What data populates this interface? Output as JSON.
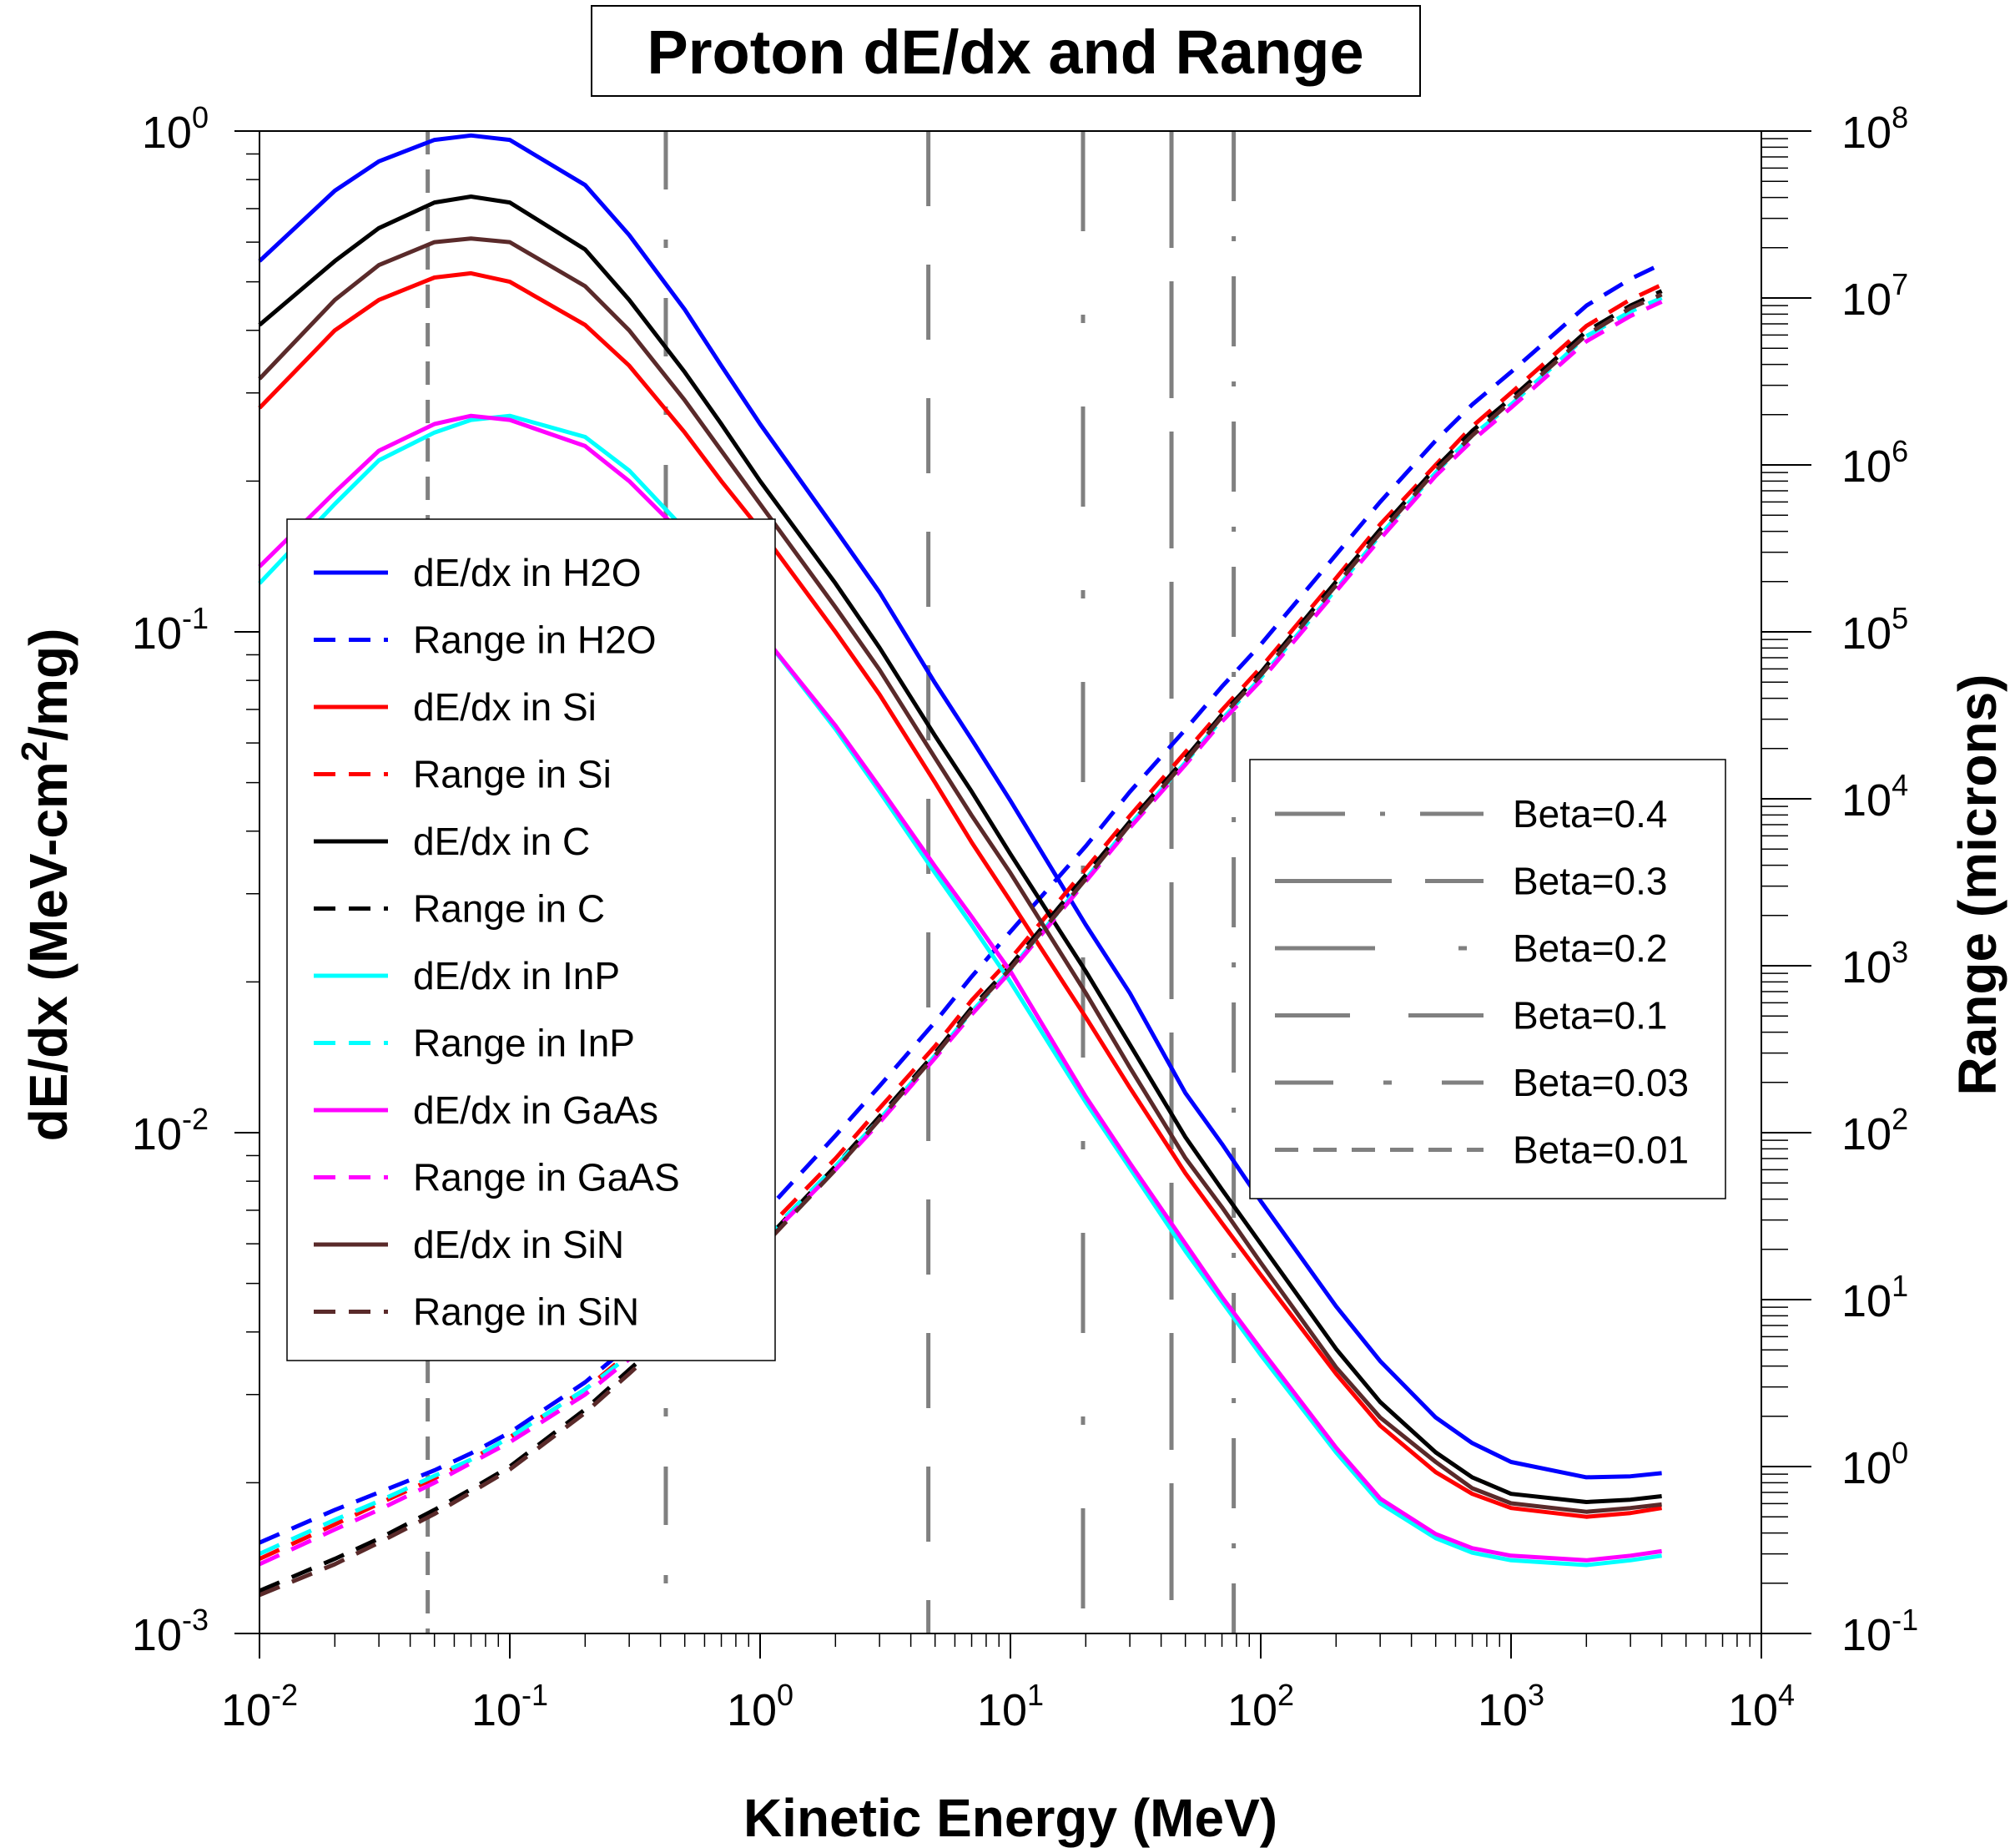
{
  "chart_data": {
    "type": "line",
    "title": "Proton dE/dx and Range",
    "xlabel": "Kinetic Energy (MeV)",
    "ylabel_left": "dE/dx (MeV-cm2/mg)",
    "ylabel_left_parts": [
      "dE/dx (MeV-cm",
      "2",
      "/mg)"
    ],
    "ylabel_right": "Range (microns)",
    "x_scale": "log",
    "xlim": [
      0.01,
      10000
    ],
    "ylim_left": [
      0.001,
      1
    ],
    "ylim_right": [
      0.1,
      100000000
    ],
    "x_ticks": [
      {
        "base": "10",
        "exp": "-2"
      },
      {
        "base": "10",
        "exp": "-1"
      },
      {
        "base": "10",
        "exp": "0"
      },
      {
        "base": "10",
        "exp": "1"
      },
      {
        "base": "10",
        "exp": "2"
      },
      {
        "base": "10",
        "exp": "3"
      },
      {
        "base": "10",
        "exp": "4"
      }
    ],
    "y_left_ticks": [
      {
        "base": "10",
        "exp": "-3"
      },
      {
        "base": "10",
        "exp": "-2"
      },
      {
        "base": "10",
        "exp": "-1"
      },
      {
        "base": "10",
        "exp": "0"
      }
    ],
    "y_right_ticks": [
      {
        "base": "10",
        "exp": "-1"
      },
      {
        "base": "10",
        "exp": "0"
      },
      {
        "base": "10",
        "exp": "1"
      },
      {
        "base": "10",
        "exp": "2"
      },
      {
        "base": "10",
        "exp": "3"
      },
      {
        "base": "10",
        "exp": "4"
      },
      {
        "base": "10",
        "exp": "5"
      },
      {
        "base": "10",
        "exp": "6"
      },
      {
        "base": "10",
        "exp": "7"
      },
      {
        "base": "10",
        "exp": "8"
      }
    ],
    "energies": [
      0.01,
      0.02,
      0.03,
      0.05,
      0.07,
      0.1,
      0.2,
      0.3,
      0.5,
      0.7,
      1,
      2,
      3,
      5,
      7,
      10,
      20,
      30,
      50,
      70,
      100,
      200,
      300,
      500,
      700,
      1000,
      2000,
      3000,
      4000
    ],
    "series": [
      {
        "name": "dE/dx in H2O",
        "axis": "left",
        "style": "solid",
        "color": "#0000ff",
        "values": [
          0.55,
          0.76,
          0.87,
          0.96,
          0.98,
          0.96,
          0.78,
          0.62,
          0.44,
          0.34,
          0.26,
          0.16,
          0.12,
          0.079,
          0.061,
          0.046,
          0.026,
          0.019,
          0.012,
          0.0095,
          0.0073,
          0.0045,
          0.0035,
          0.0027,
          0.0024,
          0.0022,
          0.00205,
          0.00206,
          0.00209
        ]
      },
      {
        "name": "Range in H2O",
        "axis": "right",
        "style": "dashed",
        "color": "#0000ff",
        "values": [
          0.35,
          0.55,
          0.7,
          0.95,
          1.2,
          1.6,
          3.2,
          5.3,
          11,
          18,
          31,
          96,
          190,
          460,
          860,
          1600,
          5200,
          11000,
          26000,
          47000,
          84000,
          290000,
          600000,
          1400000,
          2300000,
          3600000,
          9000000,
          13000000,
          16000000
        ]
      },
      {
        "name": "dE/dx in Si",
        "axis": "left",
        "style": "solid",
        "color": "#ff0000",
        "values": [
          0.28,
          0.4,
          0.46,
          0.51,
          0.52,
          0.5,
          0.41,
          0.34,
          0.25,
          0.2,
          0.16,
          0.1,
          0.075,
          0.05,
          0.038,
          0.029,
          0.017,
          0.0123,
          0.0083,
          0.0066,
          0.0052,
          0.0033,
          0.0026,
          0.0021,
          0.0019,
          0.00178,
          0.00171,
          0.00174,
          0.00178
        ]
      },
      {
        "name": "Range in Si",
        "axis": "right",
        "style": "dashed",
        "color": "#ff0000",
        "values": [
          0.28,
          0.45,
          0.6,
          0.85,
          1.1,
          1.5,
          2.9,
          4.8,
          9.3,
          14,
          24,
          70,
          140,
          330,
          620,
          1100,
          3800,
          7900,
          19000,
          34000,
          61000,
          210000,
          440000,
          1000000,
          1700000,
          2700000,
          6800000,
          9800000,
          12000000
        ]
      },
      {
        "name": "dE/dx in C",
        "axis": "left",
        "style": "solid",
        "color": "#000000",
        "values": [
          0.41,
          0.55,
          0.64,
          0.72,
          0.74,
          0.72,
          0.58,
          0.46,
          0.33,
          0.26,
          0.2,
          0.125,
          0.093,
          0.062,
          0.048,
          0.036,
          0.021,
          0.015,
          0.0098,
          0.0077,
          0.006,
          0.0037,
          0.0029,
          0.0023,
          0.00205,
          0.0019,
          0.00183,
          0.00185,
          0.00188
        ]
      },
      {
        "name": "Range in C",
        "axis": "right",
        "style": "dashed",
        "color": "#000000",
        "values": [
          0.18,
          0.28,
          0.37,
          0.55,
          0.73,
          1.0,
          2.2,
          3.8,
          7.5,
          12,
          21,
          63,
          125,
          300,
          560,
          1000,
          3500,
          7300,
          17500,
          32000,
          57000,
          200000,
          410000,
          960000,
          1600000,
          2500000,
          6300000,
          9000000,
          11000000
        ]
      },
      {
        "name": "dE/dx in InP",
        "axis": "left",
        "style": "solid",
        "color": "#00ffff",
        "values": [
          0.125,
          0.18,
          0.22,
          0.25,
          0.265,
          0.27,
          0.245,
          0.21,
          0.16,
          0.128,
          0.1,
          0.064,
          0.048,
          0.033,
          0.026,
          0.02,
          0.0115,
          0.0085,
          0.0058,
          0.0046,
          0.0036,
          0.0023,
          0.00182,
          0.00155,
          0.00145,
          0.0014,
          0.00137,
          0.0014,
          0.00143
        ]
      },
      {
        "name": "Range in InP",
        "axis": "right",
        "style": "dashed",
        "color": "#00ffff",
        "values": [
          0.3,
          0.48,
          0.62,
          0.88,
          1.1,
          1.5,
          2.9,
          4.6,
          8.6,
          13,
          22,
          63,
          120,
          290,
          530,
          950,
          3300,
          7000,
          16500,
          30000,
          53000,
          180000,
          380000,
          900000,
          1500000,
          2300000,
          5900000,
          8300000,
          10000000
        ]
      },
      {
        "name": "dE/dx in GaAs",
        "axis": "left",
        "style": "solid",
        "color": "#ff00ff",
        "values": [
          0.135,
          0.19,
          0.23,
          0.26,
          0.27,
          0.265,
          0.235,
          0.2,
          0.155,
          0.128,
          0.1,
          0.065,
          0.049,
          0.034,
          0.027,
          0.021,
          0.0118,
          0.0087,
          0.006,
          0.0047,
          0.0037,
          0.00235,
          0.00186,
          0.00158,
          0.00148,
          0.00143,
          0.0014,
          0.00143,
          0.00146
        ]
      },
      {
        "name": "Range in GaAS",
        "axis": "right",
        "style": "dashed",
        "color": "#ff00ff",
        "values": [
          0.26,
          0.42,
          0.55,
          0.8,
          1.05,
          1.4,
          2.7,
          4.4,
          8.2,
          12.5,
          21,
          60,
          115,
          280,
          510,
          920,
          3200,
          6700,
          16000,
          29000,
          51000,
          175000,
          360000,
          860000,
          1400000,
          2200000,
          5500000,
          7800000,
          9500000
        ]
      },
      {
        "name": "dE/dx in SiN",
        "axis": "left",
        "style": "solid",
        "color": "#5a2a2a",
        "values": [
          0.32,
          0.46,
          0.54,
          0.6,
          0.61,
          0.6,
          0.49,
          0.4,
          0.29,
          0.23,
          0.18,
          0.112,
          0.084,
          0.056,
          0.043,
          0.033,
          0.019,
          0.0135,
          0.0089,
          0.0071,
          0.0055,
          0.0034,
          0.0027,
          0.0022,
          0.00195,
          0.00182,
          0.00175,
          0.00178,
          0.00181
        ]
      },
      {
        "name": "Range in SiN",
        "axis": "right",
        "style": "dashed",
        "color": "#5a2a2a",
        "values": [
          0.17,
          0.26,
          0.35,
          0.52,
          0.7,
          0.96,
          2.1,
          3.6,
          7.2,
          11.5,
          20,
          60,
          120,
          290,
          540,
          960,
          3300,
          7000,
          16800,
          31000,
          55000,
          190000,
          390000,
          920000,
          1500000,
          2400000,
          6000000,
          8700000,
          10500000
        ]
      }
    ],
    "beta_lines": [
      {
        "name": "Beta=0.4",
        "energy": 78,
        "color": "#808080",
        "dash": "84,42,6,42"
      },
      {
        "name": "Beta=0.3",
        "energy": 44,
        "color": "#808080",
        "dash": "140,40"
      },
      {
        "name": "Beta=0.2",
        "energy": 19.5,
        "color": "#808080",
        "dash": "120,100,10,100"
      },
      {
        "name": "Beta=0.1",
        "energy": 4.7,
        "color": "#808080",
        "dash": "90,70"
      },
      {
        "name": "Beta=0.03",
        "energy": 0.42,
        "color": "#808080",
        "dash": "70,60,10,60"
      },
      {
        "name": "Beta=0.01",
        "energy": 0.047,
        "color": "#808080",
        "dash": "28,18"
      }
    ],
    "legend_main_position": "center-left",
    "legend_beta_position": "center-right",
    "grid": false
  }
}
